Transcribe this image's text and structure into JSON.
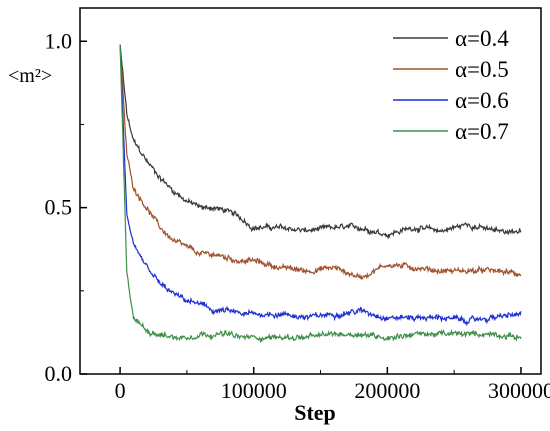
{
  "chart_data": {
    "type": "line",
    "title": "",
    "xlabel": "Step",
    "ylabel": "<m²>",
    "xlim": [
      -30000,
      315000
    ],
    "ylim": [
      0.0,
      1.1
    ],
    "x_ticks": [
      0,
      100000,
      200000,
      300000
    ],
    "x_tick_labels": [
      "0",
      "100000",
      "200000",
      "300000"
    ],
    "y_ticks": [
      0.0,
      0.5,
      1.0
    ],
    "y_tick_labels": [
      "0.0",
      "0.5",
      "1.0"
    ],
    "grid": false,
    "legend_position": "top-right",
    "x": [
      0,
      5000,
      10000,
      20000,
      30000,
      40000,
      50000,
      60000,
      70000,
      80000,
      90000,
      100000,
      120000,
      140000,
      160000,
      180000,
      200000,
      220000,
      240000,
      260000,
      280000,
      300000
    ],
    "series": [
      {
        "name": "α=0.4",
        "color": "#3a3a3a",
        "values": [
          0.99,
          0.78,
          0.7,
          0.64,
          0.59,
          0.55,
          0.52,
          0.5,
          0.5,
          0.49,
          0.47,
          0.44,
          0.44,
          0.43,
          0.44,
          0.44,
          0.42,
          0.44,
          0.43,
          0.45,
          0.43,
          0.43
        ]
      },
      {
        "name": "α=0.5",
        "color": "#a0522d",
        "values": [
          0.99,
          0.66,
          0.56,
          0.5,
          0.44,
          0.4,
          0.38,
          0.36,
          0.36,
          0.35,
          0.34,
          0.34,
          0.32,
          0.31,
          0.32,
          0.29,
          0.33,
          0.32,
          0.31,
          0.31,
          0.31,
          0.3
        ]
      },
      {
        "name": "α=0.6",
        "color": "#1f2fd0",
        "values": [
          0.99,
          0.48,
          0.38,
          0.32,
          0.27,
          0.24,
          0.22,
          0.21,
          0.19,
          0.19,
          0.18,
          0.18,
          0.18,
          0.17,
          0.18,
          0.19,
          0.17,
          0.17,
          0.17,
          0.16,
          0.17,
          0.18
        ]
      },
      {
        "name": "α=0.7",
        "color": "#3f8f4a",
        "values": [
          0.99,
          0.3,
          0.17,
          0.13,
          0.12,
          0.11,
          0.11,
          0.12,
          0.12,
          0.12,
          0.11,
          0.11,
          0.11,
          0.11,
          0.12,
          0.12,
          0.11,
          0.12,
          0.12,
          0.12,
          0.12,
          0.11
        ]
      }
    ]
  }
}
